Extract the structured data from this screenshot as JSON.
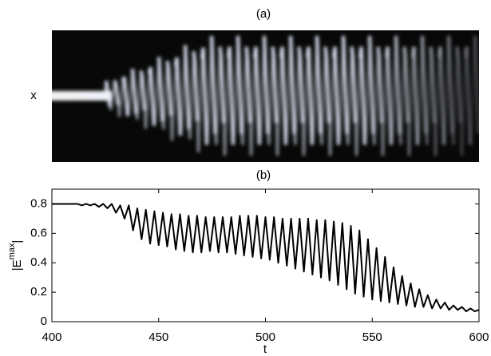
{
  "chart_data": [
    {
      "type": "image",
      "title": "(a)",
      "ylabel": "x"
    },
    {
      "type": "line",
      "title": "(b)",
      "xlabel": "t",
      "ylabel": [
        "|E",
        "max",
        "|"
      ],
      "color": "#000000",
      "x": [
        400,
        402,
        404,
        406,
        408,
        410,
        412,
        414,
        416,
        418,
        420,
        422,
        424,
        426,
        428,
        430,
        432,
        434,
        436,
        438,
        440,
        442,
        444,
        446,
        448,
        450,
        452,
        454,
        456,
        458,
        460,
        462,
        464,
        466,
        468,
        470,
        472,
        474,
        476,
        478,
        480,
        482,
        484,
        486,
        488,
        490,
        492,
        494,
        496,
        498,
        500,
        502,
        504,
        506,
        508,
        510,
        512,
        514,
        516,
        518,
        520,
        522,
        524,
        526,
        528,
        530,
        532,
        534,
        536,
        538,
        540,
        542,
        544,
        546,
        548,
        550,
        552,
        554,
        556,
        558,
        560,
        562,
        564,
        566,
        568,
        570,
        572,
        574,
        576,
        578,
        580,
        582,
        584,
        586,
        588,
        590,
        592,
        594,
        596,
        598,
        600
      ],
      "values": [
        0.8,
        0.8,
        0.8,
        0.8,
        0.8,
        0.8,
        0.8,
        0.79,
        0.8,
        0.79,
        0.8,
        0.78,
        0.8,
        0.77,
        0.8,
        0.74,
        0.79,
        0.7,
        0.79,
        0.62,
        0.77,
        0.56,
        0.76,
        0.53,
        0.75,
        0.52,
        0.74,
        0.51,
        0.73,
        0.49,
        0.73,
        0.48,
        0.72,
        0.47,
        0.72,
        0.47,
        0.71,
        0.48,
        0.71,
        0.47,
        0.71,
        0.47,
        0.71,
        0.46,
        0.72,
        0.45,
        0.72,
        0.44,
        0.72,
        0.43,
        0.71,
        0.42,
        0.71,
        0.4,
        0.7,
        0.38,
        0.7,
        0.36,
        0.7,
        0.34,
        0.7,
        0.32,
        0.69,
        0.3,
        0.69,
        0.28,
        0.68,
        0.25,
        0.67,
        0.22,
        0.65,
        0.19,
        0.62,
        0.17,
        0.56,
        0.15,
        0.5,
        0.14,
        0.44,
        0.13,
        0.37,
        0.12,
        0.31,
        0.11,
        0.26,
        0.1,
        0.22,
        0.1,
        0.18,
        0.09,
        0.15,
        0.09,
        0.13,
        0.08,
        0.11,
        0.08,
        0.1,
        0.07,
        0.09,
        0.07,
        0.08
      ],
      "xlim": [
        400,
        600
      ],
      "ylim": [
        0,
        0.9
      ],
      "xticks": [
        400,
        450,
        500,
        550,
        600
      ],
      "yticks": [
        0,
        0.2,
        0.4,
        0.6,
        0.8
      ]
    }
  ]
}
